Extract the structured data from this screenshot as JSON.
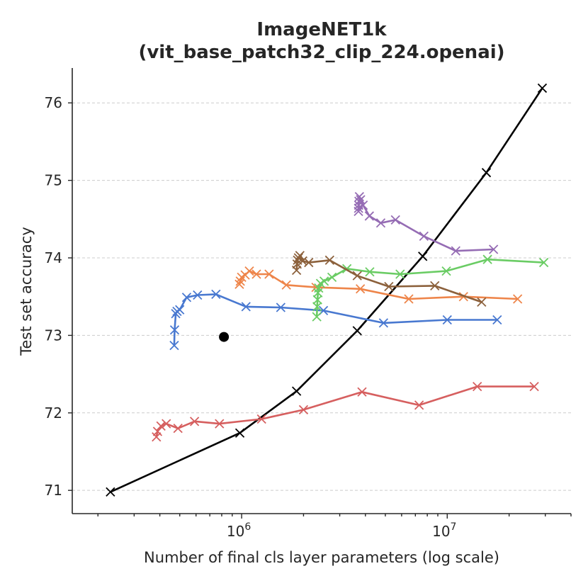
{
  "chart_data": {
    "type": "line",
    "title_lines": [
      "ImageNET1k",
      "(vit_base_patch32_clip_224.openai)"
    ],
    "xlabel": "Number of final cls layer parameters (log scale)",
    "ylabel": "Test set accuracy",
    "xscale": "log",
    "xlim": [
      150000,
      40000000
    ],
    "ylim": [
      70.7,
      76.45
    ],
    "yticks": [
      71,
      72,
      73,
      74,
      75,
      76
    ],
    "ytick_labels": [
      "71",
      "72",
      "73",
      "74",
      "75",
      "76"
    ],
    "xticks_major": [
      1000000,
      10000000
    ],
    "xtick_labels": [
      {
        "base": "10",
        "exp": "6"
      },
      {
        "base": "10",
        "exp": "7"
      }
    ],
    "grid": "y-dashed",
    "legend": "none",
    "series": [
      {
        "name": "black",
        "color": "#000000",
        "marker": "x",
        "x": [
          230000,
          980000,
          1850000,
          3650000,
          7600000,
          15500000,
          29000000
        ],
        "y": [
          70.98,
          71.74,
          72.28,
          73.06,
          74.02,
          75.1,
          76.19
        ]
      },
      {
        "name": "red",
        "color": "#d65f5f",
        "marker": "x",
        "x": [
          385000,
          390000,
          405000,
          430000,
          490000,
          590000,
          780000,
          1250000,
          2000000,
          3850000,
          7300000,
          14000000,
          26500000
        ],
        "y": [
          71.69,
          71.76,
          71.83,
          71.86,
          71.8,
          71.89,
          71.86,
          71.92,
          72.04,
          72.27,
          72.1,
          72.34,
          72.34
        ],
        "order_note": "vertical cluster near 3.9e5 connected first"
      },
      {
        "name": "blue",
        "color": "#4878d0",
        "marker": "x",
        "x": [
          470000,
          472000,
          478000,
          485000,
          500000,
          540000,
          610000,
          750000,
          1050000,
          1550000,
          2500000,
          4900000,
          10000000,
          17500000
        ],
        "y": [
          72.87,
          73.07,
          73.28,
          73.31,
          73.33,
          73.49,
          73.52,
          73.53,
          73.37,
          73.36,
          73.32,
          73.16,
          73.2,
          73.2
        ]
      },
      {
        "name": "orange",
        "color": "#ee854a",
        "marker": "x",
        "x": [
          975000,
          985000,
          1000000,
          1040000,
          1090000,
          1180000,
          1360000,
          1650000,
          2300000,
          3780000,
          6500000,
          12000000,
          22000000
        ],
        "y": [
          73.66,
          73.7,
          73.75,
          73.78,
          73.83,
          73.79,
          73.79,
          73.65,
          73.62,
          73.6,
          73.47,
          73.5,
          73.47
        ]
      },
      {
        "name": "green",
        "color": "#6acc64",
        "marker": "x",
        "x": [
          2320000,
          2330000,
          2340000,
          2350000,
          2370000,
          2420000,
          2520000,
          2750000,
          3250000,
          4200000,
          5900000,
          9900000,
          15700000,
          29500000
        ],
        "y": [
          73.24,
          73.37,
          73.46,
          73.55,
          73.61,
          73.67,
          73.7,
          73.75,
          73.86,
          73.82,
          73.79,
          73.83,
          73.98,
          73.94
        ]
      },
      {
        "name": "brown",
        "color": "#8c613c",
        "marker": "x",
        "x": [
          1850000,
          1860000,
          1870000,
          1890000,
          1920000,
          1980000,
          2120000,
          2680000,
          3650000,
          5200000,
          8700000,
          14700000
        ],
        "y": [
          73.84,
          73.92,
          73.97,
          74.0,
          74.03,
          73.96,
          73.94,
          73.97,
          73.77,
          73.63,
          73.64,
          73.43
        ]
      },
      {
        "name": "purple",
        "color": "#956cb4",
        "marker": "x",
        "x": [
          3700000,
          3705000,
          3710000,
          3720000,
          3740000,
          3790000,
          3900000,
          4180000,
          4750000,
          5600000,
          7700000,
          11000000,
          16800000
        ],
        "y": [
          74.6,
          74.64,
          74.68,
          74.73,
          74.79,
          74.75,
          74.68,
          74.54,
          74.45,
          74.49,
          74.28,
          74.09,
          74.11
        ]
      }
    ],
    "reference_point": {
      "x": 820000,
      "y": 72.98,
      "color": "#000000",
      "marker": "circle"
    }
  }
}
